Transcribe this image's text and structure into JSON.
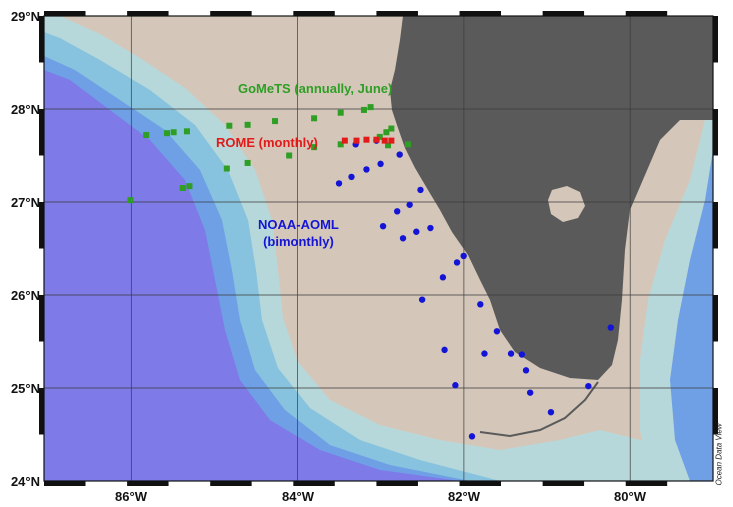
{
  "axes": {
    "lat_labels": [
      "29°N",
      "28°N",
      "27°N",
      "26°N",
      "25°N",
      "24°N"
    ],
    "lon_labels": [
      "86°W",
      "84°W",
      "82°W",
      "80°W"
    ]
  },
  "legend": {
    "gomets": "GoMeTS (annually, June)",
    "rome": "ROME (monthly)",
    "noaa_line1": "NOAA-AOML",
    "noaa_line2": "(bimonthly)"
  },
  "credit": "Ocean Data View",
  "colors": {
    "gomets": "#2e9e24",
    "rome": "#e21a1a",
    "noaa": "#1414d6",
    "deep_water": "#7e7ae8",
    "shelf": "#d4c7ba",
    "land": "#5a5a5a"
  },
  "stations": {
    "gomets": [
      [
        -85.96,
        27.02
      ],
      [
        -85.77,
        27.72
      ],
      [
        -85.52,
        27.74
      ],
      [
        -85.44,
        27.75
      ],
      [
        -85.28,
        27.76
      ],
      [
        -85.33,
        27.15
      ],
      [
        -85.25,
        27.17
      ],
      [
        -84.8,
        27.36
      ],
      [
        -84.77,
        27.82
      ],
      [
        -84.55,
        27.83
      ],
      [
        -84.55,
        27.42
      ],
      [
        -84.22,
        27.87
      ],
      [
        -84.05,
        27.5
      ],
      [
        -83.75,
        27.9
      ],
      [
        -83.75,
        27.59
      ],
      [
        -83.43,
        27.96
      ],
      [
        -83.43,
        27.62
      ],
      [
        -83.15,
        27.99
      ],
      [
        -83.07,
        28.02
      ],
      [
        -82.96,
        27.7
      ],
      [
        -82.88,
        27.75
      ],
      [
        -82.82,
        27.79
      ],
      [
        -82.86,
        27.61
      ],
      [
        -82.62,
        27.62
      ]
    ],
    "rome": [
      [
        -83.38,
        27.66
      ],
      [
        -83.24,
        27.66
      ],
      [
        -83.12,
        27.67
      ],
      [
        -83.0,
        27.67
      ],
      [
        -82.9,
        27.66
      ],
      [
        -82.82,
        27.66
      ]
    ],
    "noaa": [
      [
        -83.45,
        27.2
      ],
      [
        -83.3,
        27.27
      ],
      [
        -83.25,
        27.62
      ],
      [
        -83.12,
        27.35
      ],
      [
        -83.0,
        27.66
      ],
      [
        -82.95,
        27.41
      ],
      [
        -82.72,
        27.51
      ],
      [
        -82.92,
        26.74
      ],
      [
        -82.75,
        26.9
      ],
      [
        -82.6,
        26.97
      ],
      [
        -82.68,
        26.61
      ],
      [
        -82.47,
        27.13
      ],
      [
        -82.52,
        26.68
      ],
      [
        -82.35,
        26.72
      ],
      [
        -82.2,
        26.19
      ],
      [
        -82.03,
        26.35
      ],
      [
        -81.95,
        26.42
      ],
      [
        -82.45,
        25.95
      ],
      [
        -81.75,
        25.9
      ],
      [
        -81.55,
        25.61
      ],
      [
        -81.38,
        25.37
      ],
      [
        -81.25,
        25.36
      ],
      [
        -81.2,
        25.19
      ],
      [
        -81.7,
        25.37
      ],
      [
        -82.18,
        25.41
      ],
      [
        -82.05,
        25.03
      ],
      [
        -81.85,
        24.48
      ],
      [
        -81.15,
        24.95
      ],
      [
        -80.9,
        24.74
      ],
      [
        -80.45,
        25.02
      ],
      [
        -80.18,
        25.65
      ]
    ]
  }
}
